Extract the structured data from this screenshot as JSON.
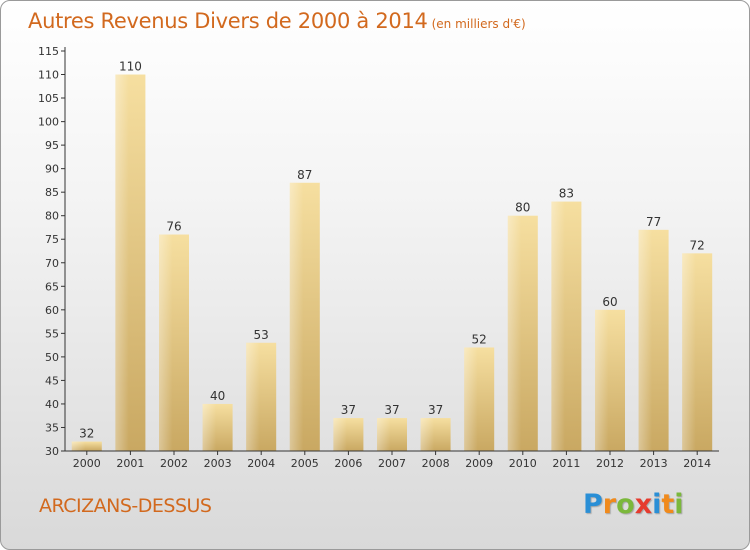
{
  "header": {
    "title": "Autres Revenus Divers de 2000 à 2014",
    "unit": "(en milliers d'€)"
  },
  "footer": {
    "commune": "ARCIZANS-DESSUS",
    "logo": [
      "P",
      "r",
      "o",
      "x",
      "i",
      "t",
      "i"
    ],
    "logo_colors": [
      "#2a8fd6",
      "#f08a1c",
      "#7bb83b",
      "#e63b2e",
      "#2a8fd6",
      "#f08a1c",
      "#7bb83b"
    ]
  },
  "colors": {
    "title": "#d2691e",
    "bar_light": "#f6dfa0",
    "bar_dark": "#c9a862",
    "axis": "#333333"
  },
  "chart_data": {
    "type": "bar",
    "title": "Autres Revenus Divers de 2000 à 2014",
    "subtitle": "(en milliers d'€)",
    "categories": [
      "2000",
      "2001",
      "2002",
      "2003",
      "2004",
      "2005",
      "2006",
      "2007",
      "2008",
      "2009",
      "2010",
      "2011",
      "2012",
      "2013",
      "2014"
    ],
    "values": [
      32,
      110,
      76,
      40,
      53,
      87,
      37,
      37,
      37,
      52,
      80,
      83,
      60,
      77,
      72
    ],
    "ylim": [
      30,
      115
    ],
    "yticks": [
      30,
      35,
      40,
      45,
      50,
      55,
      60,
      65,
      70,
      75,
      80,
      85,
      90,
      95,
      100,
      105,
      110,
      115
    ],
    "grid": false,
    "xlabel": "",
    "ylabel": ""
  }
}
